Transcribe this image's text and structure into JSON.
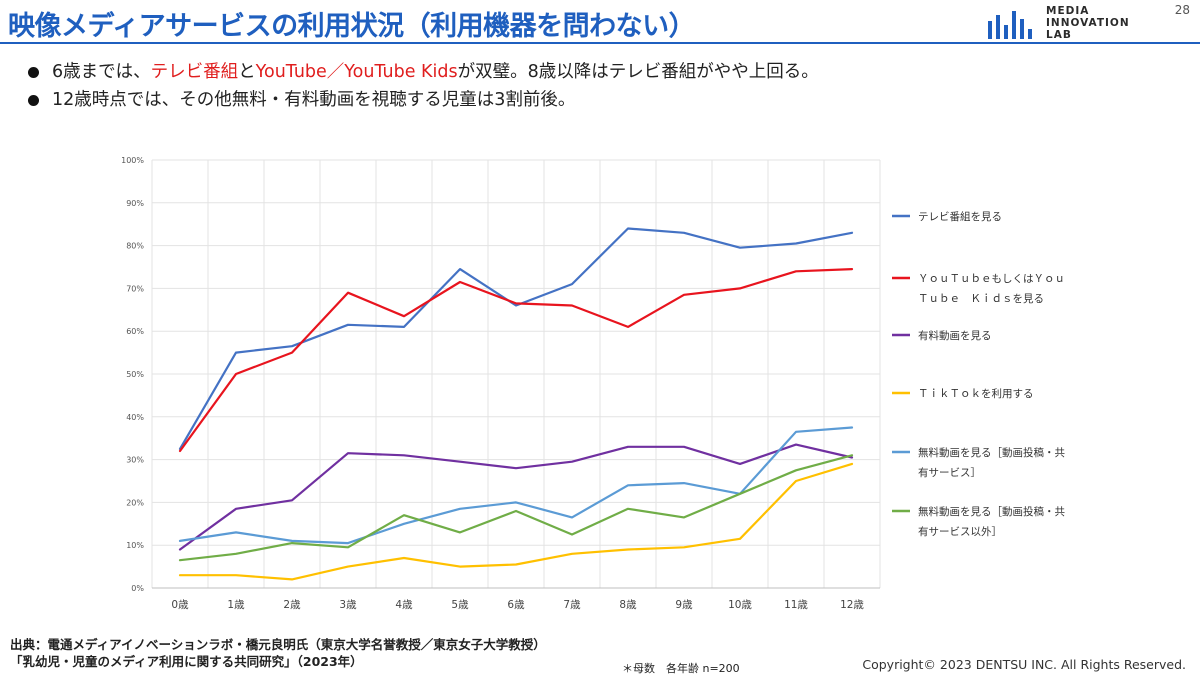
{
  "header": {
    "title": "映像メディアサービスの利用状況（利用機器を問わない）",
    "page_number": "28",
    "logo_lines": [
      "MEDIA",
      "INNOVATION",
      "LAB"
    ]
  },
  "bullets": [
    {
      "p1": "6歳までは、",
      "r1": "テレビ番組",
      "p2": "と",
      "r2": "YouTube／YouTube Kids",
      "p3": "が双璧。8歳以降はテレビ番組がやや上回る。"
    },
    {
      "p1": "12歳時点では、その他無料・有料動画を視聴する児童は3割前後。"
    }
  ],
  "chart_data": {
    "type": "line",
    "categories": [
      "0歳",
      "1歳",
      "2歳",
      "3歳",
      "4歳",
      "5歳",
      "6歳",
      "7歳",
      "8歳",
      "9歳",
      "10歳",
      "11歳",
      "12歳"
    ],
    "ylim": [
      0,
      100
    ],
    "yticks": [
      "0%",
      "10%",
      "20%",
      "30%",
      "40%",
      "50%",
      "60%",
      "70%",
      "80%",
      "90%",
      "100%"
    ],
    "grid": true,
    "legend_position": "right",
    "series": [
      {
        "name": "テレビ番組を見る",
        "color": "#4472c4",
        "values": [
          32.5,
          55,
          56.5,
          61.5,
          61,
          74.5,
          66,
          71,
          84,
          83,
          79.5,
          80.5,
          83
        ]
      },
      {
        "name": "ＹｏｕＴｕｂｅもしくはＹｏｕＴｕｂｅ　Ｋｉｄｓを見る",
        "color": "#e8141e",
        "values": [
          32,
          50,
          55,
          69,
          63.5,
          71.5,
          66.5,
          66,
          61,
          68.5,
          70,
          74,
          74.5
        ]
      },
      {
        "name": "有料動画を見る",
        "color": "#7030a0",
        "values": [
          9,
          18.5,
          20.5,
          31.5,
          31,
          29.5,
          28,
          29.5,
          33,
          33,
          29,
          33.5,
          30.5
        ]
      },
      {
        "name": "ＴｉｋＴｏｋを利用する",
        "color": "#ffc000",
        "values": [
          3,
          3,
          2,
          5,
          7,
          5,
          5.5,
          8,
          9,
          9.5,
          11.5,
          25,
          29
        ]
      },
      {
        "name": "無料動画を見る［動画投稿・共有サービス］",
        "color": "#5b9bd5",
        "values": [
          11,
          13,
          11,
          10.5,
          15,
          18.5,
          20,
          16.5,
          24,
          24.5,
          22,
          36.5,
          37.5
        ]
      },
      {
        "name": "無料動画を見る［動画投稿・共有サービス以外］",
        "color": "#70ad47",
        "values": [
          6.5,
          8,
          10.5,
          9.5,
          17,
          13,
          18,
          12.5,
          18.5,
          16.5,
          22,
          27.5,
          31
        ]
      }
    ],
    "legend_lines": [
      [
        "テレビ番組を見る"
      ],
      [
        "ＹｏｕＴｕｂｅもしくはＹｏｕ",
        "Ｔｕｂｅ　Ｋｉｄｓを見る"
      ],
      [
        "有料動画を見る"
      ],
      [
        "ＴｉｋＴｏｋを利用する"
      ],
      [
        "無料動画を見る［動画投稿・共",
        "有サービス］"
      ],
      [
        "無料動画を見る［動画投稿・共",
        "有サービス以外］"
      ]
    ]
  },
  "footer": {
    "source_line1": "出典：電通メディアイノベーションラボ・橋元良明氏（東京大学名誉教授／東京女子大学教授）",
    "source_line2": "「乳幼児・児童のメディア利用に関する共同研究」（2023年）",
    "note": "＊母数　各年齢 n=200",
    "copyright": "Copyright© 2023 DENTSU INC. All Rights Reserved."
  }
}
